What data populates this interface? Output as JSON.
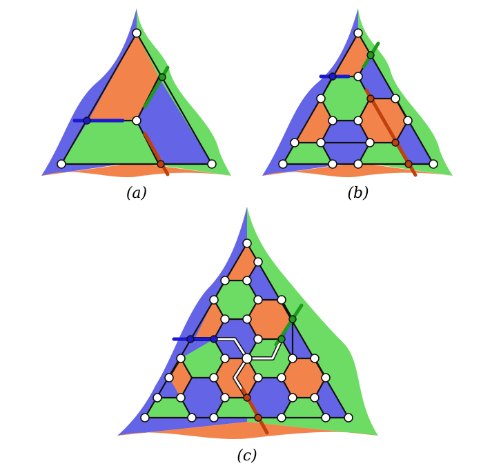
{
  "colors": {
    "blue": "#6464e6",
    "green": "#6ddc64",
    "orange": "#f2844b",
    "outline": "#111111",
    "node_fill": "#ffffff",
    "line_blue": "#1a1ad0",
    "line_green": "#1e9a1e",
    "line_orange": "#c0400e",
    "boundary": "#bdbdbd"
  },
  "panels": [
    {
      "id": "a",
      "label": "(a)",
      "subdivisions": 1
    },
    {
      "id": "b",
      "label": "(b)",
      "subdivisions": 2
    },
    {
      "id": "c",
      "label": "(c)",
      "subdivisions": 3
    }
  ]
}
